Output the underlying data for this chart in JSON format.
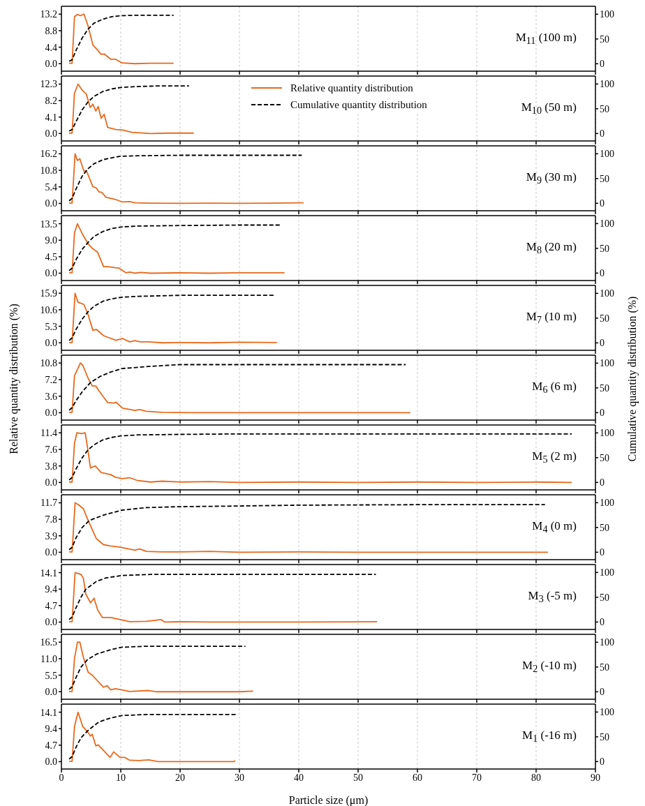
{
  "chart_data": [
    {
      "type": "line",
      "title": "M$_{11}$ (100 m)",
      "xlim": [
        0,
        90
      ],
      "xticks": [
        0,
        10,
        20,
        30,
        40,
        50,
        60,
        70,
        80,
        90
      ],
      "ylim": [
        -2,
        15.3
      ],
      "yticks": [
        {
          "value": 0,
          "label": "0.0"
        },
        4.4,
        8.8,
        13.2
      ],
      "y2lim": [
        -15,
        116
      ],
      "y2ticks": [
        0,
        50,
        100
      ],
      "grid": "x",
      "tick_labels": "y",
      "series": [
        {
          "color": "#e8691c",
          "line_style": "solid",
          "x": [
            1.3,
            1.8,
            2.2,
            2.7,
            3.2,
            3.8,
            4.5,
            5.3,
            6,
            6.7,
            7.2,
            8.3,
            9.1,
            10.2,
            12.4,
            15,
            18.9
          ],
          "values": [
            0.1,
            0.1,
            12.5,
            13.1,
            12.8,
            13.2,
            10,
            5,
            3.8,
            2.5,
            2.6,
            1.2,
            1.2,
            0.2,
            0,
            0.1,
            0.1
          ]
        },
        {
          "color": "#000000",
          "line_style": "dashed",
          "axis": "y2",
          "x": [
            1.3,
            1.8,
            2.5,
            3.5,
            4.5,
            5.5,
            7,
            8.5,
            10,
            13,
            18.9
          ],
          "values": [
            5,
            8,
            28,
            52,
            70,
            82,
            90,
            95,
            97,
            98,
            98
          ]
        }
      ]
    },
    {
      "type": "line",
      "title": "M$_{10}$ (50 m)",
      "legend": "top",
      "xlim": [
        0,
        90
      ],
      "xticks": [
        0,
        10,
        20,
        30,
        40,
        50,
        60,
        70,
        80,
        90
      ],
      "ylim": [
        -1.85,
        14.3
      ],
      "yticks": [
        {
          "value": 0,
          "label": "0.0"
        },
        4.1,
        8.2,
        12.3
      ],
      "y2lim": [
        -15,
        116
      ],
      "y2ticks": [
        0,
        50,
        100
      ],
      "grid": "x",
      "tick_labels": "y",
      "series": [
        {
          "name": "Relative quantity distribution",
          "color": "#e8691c",
          "line_style": "solid",
          "x": [
            1.3,
            1.8,
            2.2,
            2.8,
            3.5,
            4.2,
            4.85,
            5.3,
            5.8,
            6.2,
            6.7,
            7.2,
            7.8,
            9.2,
            10.2,
            11.9,
            15,
            18,
            22.3
          ],
          "values": [
            0.1,
            0.1,
            10,
            12.3,
            10.8,
            9.8,
            6.5,
            7.3,
            5.6,
            6.7,
            3.8,
            4.8,
            1.5,
            1,
            0.9,
            0.3,
            0,
            0.1,
            0.1
          ]
        },
        {
          "name": "Cumulative quantity distribution",
          "color": "#000000",
          "line_style": "dashed",
          "axis": "y2",
          "x": [
            1.3,
            1.8,
            2.5,
            3.5,
            4.5,
            5.5,
            7,
            8.5,
            10,
            13,
            16,
            21.5
          ],
          "values": [
            5,
            8,
            25,
            48,
            64,
            75,
            85,
            90,
            93,
            95,
            96,
            96
          ]
        }
      ]
    },
    {
      "type": "line",
      "title": "M$_{9}$ (30 m)",
      "xlim": [
        0,
        90
      ],
      "xticks": [
        0,
        10,
        20,
        30,
        40,
        50,
        60,
        70,
        80,
        90
      ],
      "ylim": [
        -2.4,
        18.8
      ],
      "yticks": [
        {
          "value": 0,
          "label": "0.0"
        },
        5.4,
        10.8,
        16.2
      ],
      "y2lim": [
        -15,
        116
      ],
      "y2ticks": [
        0,
        50,
        100
      ],
      "grid": "x",
      "tick_labels": "y",
      "series": [
        {
          "color": "#e8691c",
          "line_style": "solid",
          "x": [
            1.3,
            1.8,
            2.3,
            2.7,
            3.1,
            3.8,
            4.2,
            5.3,
            5.9,
            6.3,
            6.8,
            7.5,
            9.1,
            10.2,
            11.5,
            12.4,
            15,
            20,
            25,
            30,
            35,
            40.8
          ],
          "values": [
            0.1,
            0.1,
            16.2,
            14,
            14.6,
            10.5,
            10.7,
            5.5,
            5,
            3.8,
            3.6,
            2,
            1.3,
            0.5,
            0.6,
            0.2,
            0.1,
            0,
            0.1,
            0,
            0.1,
            0.2
          ]
        },
        {
          "color": "#000000",
          "line_style": "dashed",
          "axis": "y2",
          "x": [
            1.3,
            1.8,
            2.5,
            3.5,
            4.5,
            5.5,
            7,
            8.5,
            10,
            13,
            20,
            30,
            40.5
          ],
          "values": [
            5,
            10,
            30,
            55,
            70,
            80,
            88,
            92,
            95,
            96,
            97,
            97,
            97
          ]
        }
      ]
    },
    {
      "type": "line",
      "title": "M$_{8}$ (20 m)",
      "xlim": [
        0,
        90
      ],
      "xticks": [
        0,
        10,
        20,
        30,
        40,
        50,
        60,
        70,
        80,
        90
      ],
      "ylim": [
        -2,
        15.7
      ],
      "yticks": [
        {
          "value": 0,
          "label": "0.0"
        },
        4.5,
        {
          "value": 9,
          "label": "9.0"
        },
        13.5
      ],
      "y2lim": [
        -15,
        116
      ],
      "y2ticks": [
        0,
        50,
        100
      ],
      "grid": "x",
      "tick_labels": "y",
      "series": [
        {
          "color": "#e8691c",
          "line_style": "solid",
          "x": [
            1.3,
            1.8,
            2.2,
            2.7,
            3.6,
            4.5,
            5.2,
            6.1,
            7.1,
            7.8,
            9.1,
            9.7,
            10.9,
            11.5,
            12.4,
            13.3,
            15,
            20,
            25,
            30,
            37.6
          ],
          "values": [
            0.1,
            0.1,
            11,
            13.5,
            10.5,
            8,
            6.8,
            5.7,
            1.8,
            1.8,
            1.5,
            1.4,
            0.1,
            0.3,
            0,
            0.2,
            0,
            0.1,
            0,
            0.1,
            0.1
          ]
        },
        {
          "color": "#000000",
          "line_style": "dashed",
          "axis": "y2",
          "x": [
            1.3,
            1.8,
            2.5,
            3.5,
            4.5,
            5.5,
            7,
            8.5,
            10,
            13,
            20,
            30,
            37
          ],
          "values": [
            5,
            10,
            28,
            48,
            62,
            74,
            84,
            90,
            93,
            95,
            96,
            97,
            97
          ]
        }
      ]
    },
    {
      "type": "line",
      "title": "M$_{7}$ (10 m)",
      "xlim": [
        0,
        90
      ],
      "xticks": [
        0,
        10,
        20,
        30,
        40,
        50,
        60,
        70,
        80,
        90
      ],
      "ylim": [
        -2.4,
        18.4
      ],
      "yticks": [
        {
          "value": 0,
          "label": "0.0"
        },
        5.3,
        10.6,
        15.9
      ],
      "y2lim": [
        -15,
        116
      ],
      "y2ticks": [
        0,
        50,
        100
      ],
      "grid": "x",
      "tick_labels": "y",
      "series": [
        {
          "color": "#e8691c",
          "line_style": "solid",
          "x": [
            1.3,
            1.8,
            2.3,
            2.8,
            3.8,
            4.5,
            5.3,
            5.9,
            7.1,
            7.8,
            9.2,
            10.3,
            11.5,
            12.4,
            13.3,
            14.7,
            17,
            20,
            25,
            30,
            36.3
          ],
          "values": [
            0.1,
            0.1,
            15.9,
            13,
            12.3,
            9,
            4,
            4.3,
            2.3,
            1.8,
            0.8,
            1.4,
            0.3,
            0.7,
            0.3,
            0.3,
            0,
            0.1,
            0,
            0.2,
            0.1
          ]
        },
        {
          "color": "#000000",
          "line_style": "dashed",
          "axis": "y2",
          "x": [
            1.3,
            1.8,
            2.5,
            3.5,
            4.5,
            5.5,
            7,
            8.5,
            10,
            13,
            20,
            30,
            36
          ],
          "values": [
            5,
            10,
            28,
            48,
            63,
            74,
            84,
            89,
            92,
            94,
            96,
            96,
            96
          ]
        }
      ]
    },
    {
      "type": "line",
      "title": "M$_{6}$ (6 m)",
      "ylabel": "Relative quantity distribution (%)",
      "y2label": "Cumulative quantity distribution (%)",
      "xlim": [
        0,
        90
      ],
      "xticks": [
        0,
        10,
        20,
        30,
        40,
        50,
        60,
        70,
        80,
        90
      ],
      "ylim": [
        -1.6,
        12.5
      ],
      "yticks": [
        {
          "value": 0,
          "label": "0.0"
        },
        3.6,
        7.2,
        10.8
      ],
      "y2lim": [
        -15,
        116
      ],
      "y2ticks": [
        0,
        50,
        100
      ],
      "grid": "x",
      "tick_labels": "y",
      "series": [
        {
          "color": "#e8691c",
          "line_style": "solid",
          "x": [
            1.3,
            1.8,
            2.2,
            3.2,
            3.6,
            4.5,
            5.2,
            5.8,
            6.3,
            7.8,
            8.8,
            9.2,
            10.3,
            12.4,
            13.2,
            14.3,
            17,
            22,
            30,
            40,
            50,
            58.8
          ],
          "values": [
            0.1,
            0.1,
            8,
            10.8,
            10.3,
            7.5,
            5.8,
            5.8,
            4.8,
            2.2,
            2.1,
            2.3,
            1,
            0.5,
            0.7,
            0.3,
            0.1,
            0,
            0,
            0,
            0,
            0
          ]
        },
        {
          "color": "#000000",
          "line_style": "dashed",
          "axis": "y2",
          "x": [
            1.3,
            1.8,
            2.5,
            3.5,
            4.9,
            6.5,
            8.3,
            10.2,
            14.3,
            20,
            30,
            58
          ],
          "values": [
            5,
            10,
            25,
            42,
            61,
            73,
            82,
            89,
            93,
            97,
            97,
            97
          ]
        }
      ]
    },
    {
      "type": "line",
      "title": "M$_{5}$ (2 m)",
      "xlim": [
        0,
        90
      ],
      "xticks": [
        0,
        10,
        20,
        30,
        40,
        50,
        60,
        70,
        80,
        90
      ],
      "ylim": [
        -1.7,
        13.2
      ],
      "yticks": [
        {
          "value": 0,
          "label": "0.0"
        },
        3.8,
        7.6,
        11.4
      ],
      "y2lim": [
        -15,
        116
      ],
      "y2ticks": [
        0,
        50,
        100
      ],
      "grid": "x",
      "tick_labels": "y",
      "series": [
        {
          "color": "#e8691c",
          "line_style": "solid",
          "x": [
            1.3,
            1.8,
            2.2,
            2.6,
            3.4,
            4,
            4.4,
            4.9,
            5.7,
            6.7,
            8.3,
            9.1,
            10.2,
            11.5,
            12.7,
            15,
            17,
            20,
            25,
            30,
            40,
            50,
            60,
            70,
            80,
            86
          ],
          "values": [
            0.1,
            0.1,
            9,
            11.4,
            11.2,
            11.4,
            8,
            3.3,
            3.8,
            2.3,
            1.8,
            1.2,
            0.9,
            1.1,
            0.5,
            0.1,
            0.3,
            0.1,
            0.2,
            0,
            0.1,
            0,
            0.1,
            0,
            0.1,
            0
          ]
        },
        {
          "color": "#000000",
          "line_style": "dashed",
          "axis": "y2",
          "x": [
            1.3,
            1.8,
            2.5,
            3.5,
            4.5,
            5.5,
            7,
            8.5,
            10,
            13,
            20,
            30,
            50,
            86
          ],
          "values": [
            5,
            10,
            28,
            50,
            66,
            76,
            86,
            91,
            94,
            96,
            97,
            98,
            98,
            98
          ]
        }
      ]
    },
    {
      "type": "line",
      "title": "M$_{4}$ (0 m)",
      "xlim": [
        0,
        90
      ],
      "xticks": [
        0,
        10,
        20,
        30,
        40,
        50,
        60,
        70,
        80,
        90
      ],
      "ylim": [
        -1.75,
        13.6
      ],
      "yticks": [
        {
          "value": 0,
          "label": "0.0"
        },
        3.9,
        7.8,
        11.7
      ],
      "y2lim": [
        -15,
        116
      ],
      "y2ticks": [
        0,
        50,
        100
      ],
      "grid": "x",
      "tick_labels": "y",
      "series": [
        {
          "color": "#e8691c",
          "line_style": "solid",
          "x": [
            1.3,
            1.8,
            2.3,
            2.9,
            3.7,
            4.5,
            5.9,
            7.1,
            8.3,
            9.9,
            12.4,
            13.2,
            14.3,
            17,
            20,
            25,
            30,
            40,
            50,
            60,
            70,
            82
          ],
          "values": [
            0.1,
            0.1,
            11.7,
            11.2,
            10.3,
            7.5,
            3.2,
            1.8,
            1.5,
            1.2,
            0.5,
            0.8,
            0.2,
            0.1,
            0.1,
            0.2,
            0,
            0.1,
            0,
            0,
            0,
            0
          ]
        },
        {
          "color": "#000000",
          "line_style": "dashed",
          "axis": "y2",
          "x": [
            1.3,
            1.8,
            2.5,
            3.5,
            4.7,
            7.1,
            10.2,
            14.3,
            20,
            28,
            40,
            60,
            81.5
          ],
          "values": [
            5,
            10,
            30,
            50,
            64,
            75,
            85,
            90,
            92,
            93,
            95,
            96,
            96
          ]
        }
      ]
    },
    {
      "type": "line",
      "title": "M$_{3}$ (-5 m)",
      "xlim": [
        0,
        90
      ],
      "xticks": [
        0,
        10,
        20,
        30,
        40,
        50,
        60,
        70,
        80,
        90
      ],
      "ylim": [
        -2.1,
        16.4
      ],
      "yticks": [
        {
          "value": 0,
          "label": "0.0"
        },
        4.7,
        9.4,
        14.1
      ],
      "y2lim": [
        -15,
        116
      ],
      "y2ticks": [
        0,
        50,
        100
      ],
      "grid": "x",
      "tick_labels": "y",
      "series": [
        {
          "color": "#e8691c",
          "line_style": "solid",
          "x": [
            1.3,
            1.8,
            2.3,
            3.3,
            3.7,
            4.1,
            4.9,
            5.5,
            6.1,
            6.9,
            8.3,
            10.2,
            11.5,
            14.3,
            16.8,
            17.4,
            20,
            25,
            30,
            40,
            53.2
          ],
          "values": [
            0.1,
            0.1,
            14.1,
            13.6,
            12.5,
            8,
            5.5,
            6.8,
            3.5,
            1.3,
            1.3,
            0.6,
            0.1,
            0.2,
            0.7,
            0,
            0.1,
            0,
            0,
            0,
            0.1
          ]
        },
        {
          "color": "#000000",
          "line_style": "dashed",
          "axis": "y2",
          "x": [
            1.3,
            1.8,
            2.5,
            3.3,
            4.1,
            5.9,
            7.5,
            10.2,
            15,
            25,
            53
          ],
          "values": [
            5,
            10,
            30,
            50,
            66,
            82,
            89,
            94,
            96,
            96,
            96
          ]
        }
      ]
    },
    {
      "type": "line",
      "title": "M$_{2}$ (-10 m)",
      "xlim": [
        0,
        90
      ],
      "xticks": [
        0,
        10,
        20,
        30,
        40,
        50,
        60,
        70,
        80,
        90
      ],
      "ylim": [
        -2.5,
        19.1
      ],
      "yticks": [
        {
          "value": 0,
          "label": "0.0"
        },
        5.5,
        {
          "value": 11,
          "label": "11.0"
        },
        16.5
      ],
      "y2lim": [
        -15,
        116
      ],
      "y2ticks": [
        0,
        50,
        100
      ],
      "grid": "x",
      "tick_labels": "y",
      "series": [
        {
          "color": "#e8691c",
          "line_style": "solid",
          "x": [
            1.3,
            1.8,
            2.2,
            2.7,
            3.1,
            3.7,
            4.5,
            5.2,
            5.9,
            7.1,
            7.7,
            8.3,
            9.1,
            10.2,
            11.5,
            14.7,
            15.9,
            20,
            25,
            30,
            32.3
          ],
          "values": [
            0.1,
            0.1,
            11,
            16.5,
            16.5,
            11.5,
            6.5,
            5.5,
            4,
            1.5,
            2,
            0.6,
            1,
            0.6,
            0.1,
            0.4,
            0,
            0,
            0,
            0,
            0.2
          ]
        },
        {
          "color": "#000000",
          "line_style": "dashed",
          "axis": "y2",
          "x": [
            1.3,
            1.8,
            2.5,
            3.3,
            4.4,
            5.9,
            8.3,
            10.2,
            14.3,
            20,
            31
          ],
          "values": [
            5,
            10,
            30,
            50,
            65,
            76,
            85,
            90,
            92,
            92,
            92
          ]
        }
      ]
    },
    {
      "type": "line",
      "title": "M$_{1}$ (-16 m)",
      "xlabel": "Particle size (μm)",
      "xlim": [
        0,
        90
      ],
      "xticks": [
        0,
        10,
        20,
        30,
        40,
        50,
        60,
        70,
        80,
        90
      ],
      "ylim": [
        -2.1,
        16.4
      ],
      "yticks": [
        {
          "value": 0,
          "label": "0.0"
        },
        4.7,
        9.4,
        14.1
      ],
      "y2lim": [
        -15,
        116
      ],
      "y2ticks": [
        0,
        50,
        100
      ],
      "grid": "x",
      "series": [
        {
          "color": "#e8691c",
          "line_style": "solid",
          "x": [
            1.3,
            1.8,
            2.2,
            2.8,
            3.6,
            4.4,
            4.9,
            5.2,
            5.8,
            6.2,
            8.2,
            8.8,
            9.9,
            10.7,
            11.5,
            13.1,
            14.7,
            16.3,
            20,
            25,
            29,
            29.3
          ],
          "values": [
            0.1,
            0.1,
            10,
            14.1,
            10,
            8.5,
            7.3,
            7.8,
            4.5,
            4.8,
            1.2,
            2.8,
            1.2,
            1.2,
            0.4,
            0.3,
            0.5,
            0,
            0,
            0,
            0,
            0.3
          ]
        },
        {
          "color": "#000000",
          "line_style": "dashed",
          "axis": "y2",
          "x": [
            1.3,
            1.8,
            2.5,
            3.3,
            4.4,
            6.3,
            8.3,
            10.2,
            14.3,
            29.5
          ],
          "values": [
            5,
            10,
            30,
            48,
            62,
            80,
            88,
            93,
            95,
            95
          ]
        }
      ]
    }
  ]
}
